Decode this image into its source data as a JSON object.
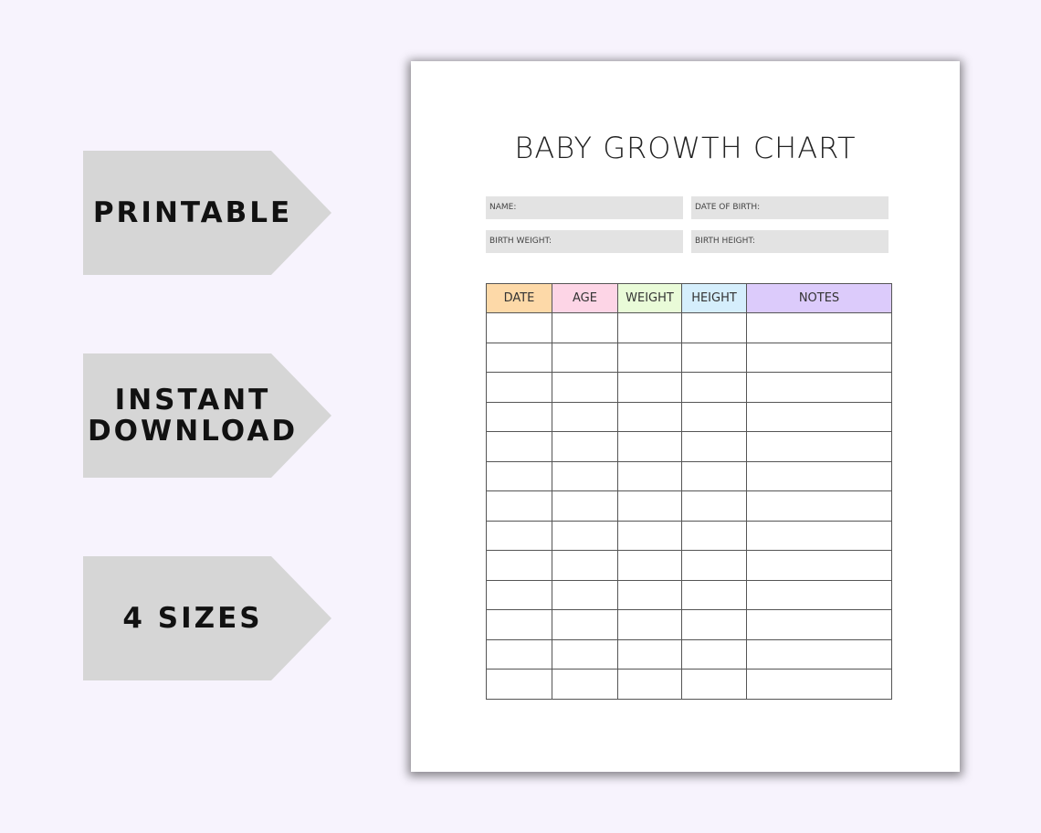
{
  "badges": [
    {
      "lines": [
        "PRINTABLE"
      ]
    },
    {
      "lines": [
        "INSTANT",
        "DOWNLOAD"
      ]
    },
    {
      "lines": [
        "4 SIZES"
      ]
    }
  ],
  "sheet": {
    "title": "BABY GROWTH CHART",
    "fields": [
      [
        "NAME:",
        "DATE OF BIRTH:"
      ],
      [
        "BIRTH WEIGHT:",
        "BIRTH HEIGHT:"
      ]
    ],
    "table": {
      "headers": [
        "DATE",
        "AGE",
        "WEIGHT",
        "HEIGHT",
        "NOTES"
      ]
    }
  }
}
